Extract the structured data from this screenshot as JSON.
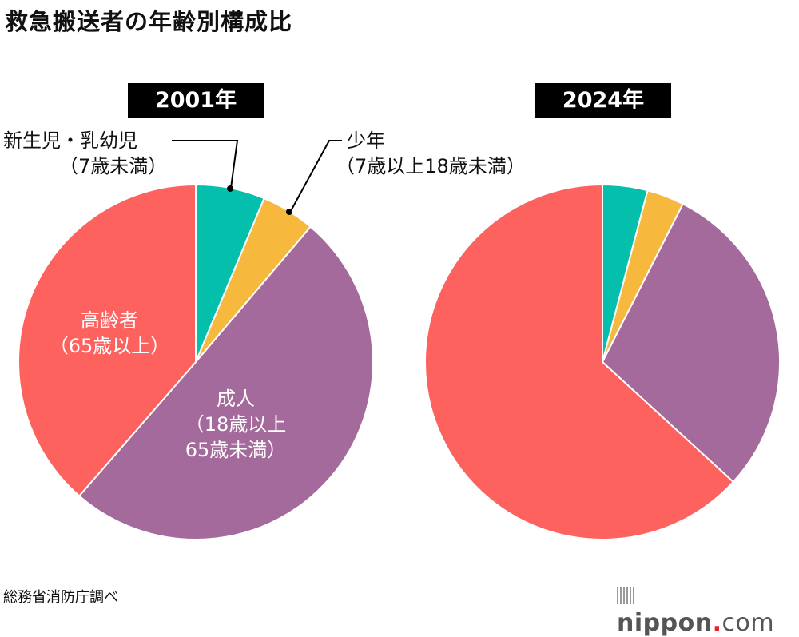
{
  "title": "救急搬送者の年齢別構成比",
  "source": "総務省消防庁調べ",
  "logo": {
    "name": "nippon",
    "dot": ".",
    "tld": "com"
  },
  "colors": {
    "infant": "#05bfad",
    "youth": "#f6b93e",
    "adult": "#a56a9c",
    "elderly": "#fe625f"
  },
  "labels": {
    "infant_line1": "新生児・乳幼児",
    "infant_line2": "（7歳未満）",
    "youth_line1": "少年",
    "youth_line2": "（7歳以上18歳未満）",
    "elderly_line1": "高齢者",
    "elderly_line2": "（65歳以上）",
    "adult_line1": "成人",
    "adult_line2": "（18歳以上",
    "adult_line3": "65歳未満）"
  },
  "chart_data": [
    {
      "type": "pie",
      "title": "2001年",
      "categories": [
        "新生児・乳幼児（7歳未満）",
        "少年（7歳以上18歳未満）",
        "成人（18歳以上65歳未満）",
        "高齢者（65歳以上）"
      ],
      "values": [
        6.3,
        4.9,
        50.2,
        38.6
      ],
      "unit": "%",
      "start": "top, clockwise"
    },
    {
      "type": "pie",
      "title": "2024年",
      "categories": [
        "新生児・乳幼児（7歳未満）",
        "少年（7歳以上18歳未満）",
        "成人（18歳以上65歳未満）",
        "高齢者（65歳以上）"
      ],
      "values": [
        4.1,
        3.4,
        29.3,
        63.2
      ],
      "unit": "%",
      "start": "top, clockwise"
    }
  ]
}
